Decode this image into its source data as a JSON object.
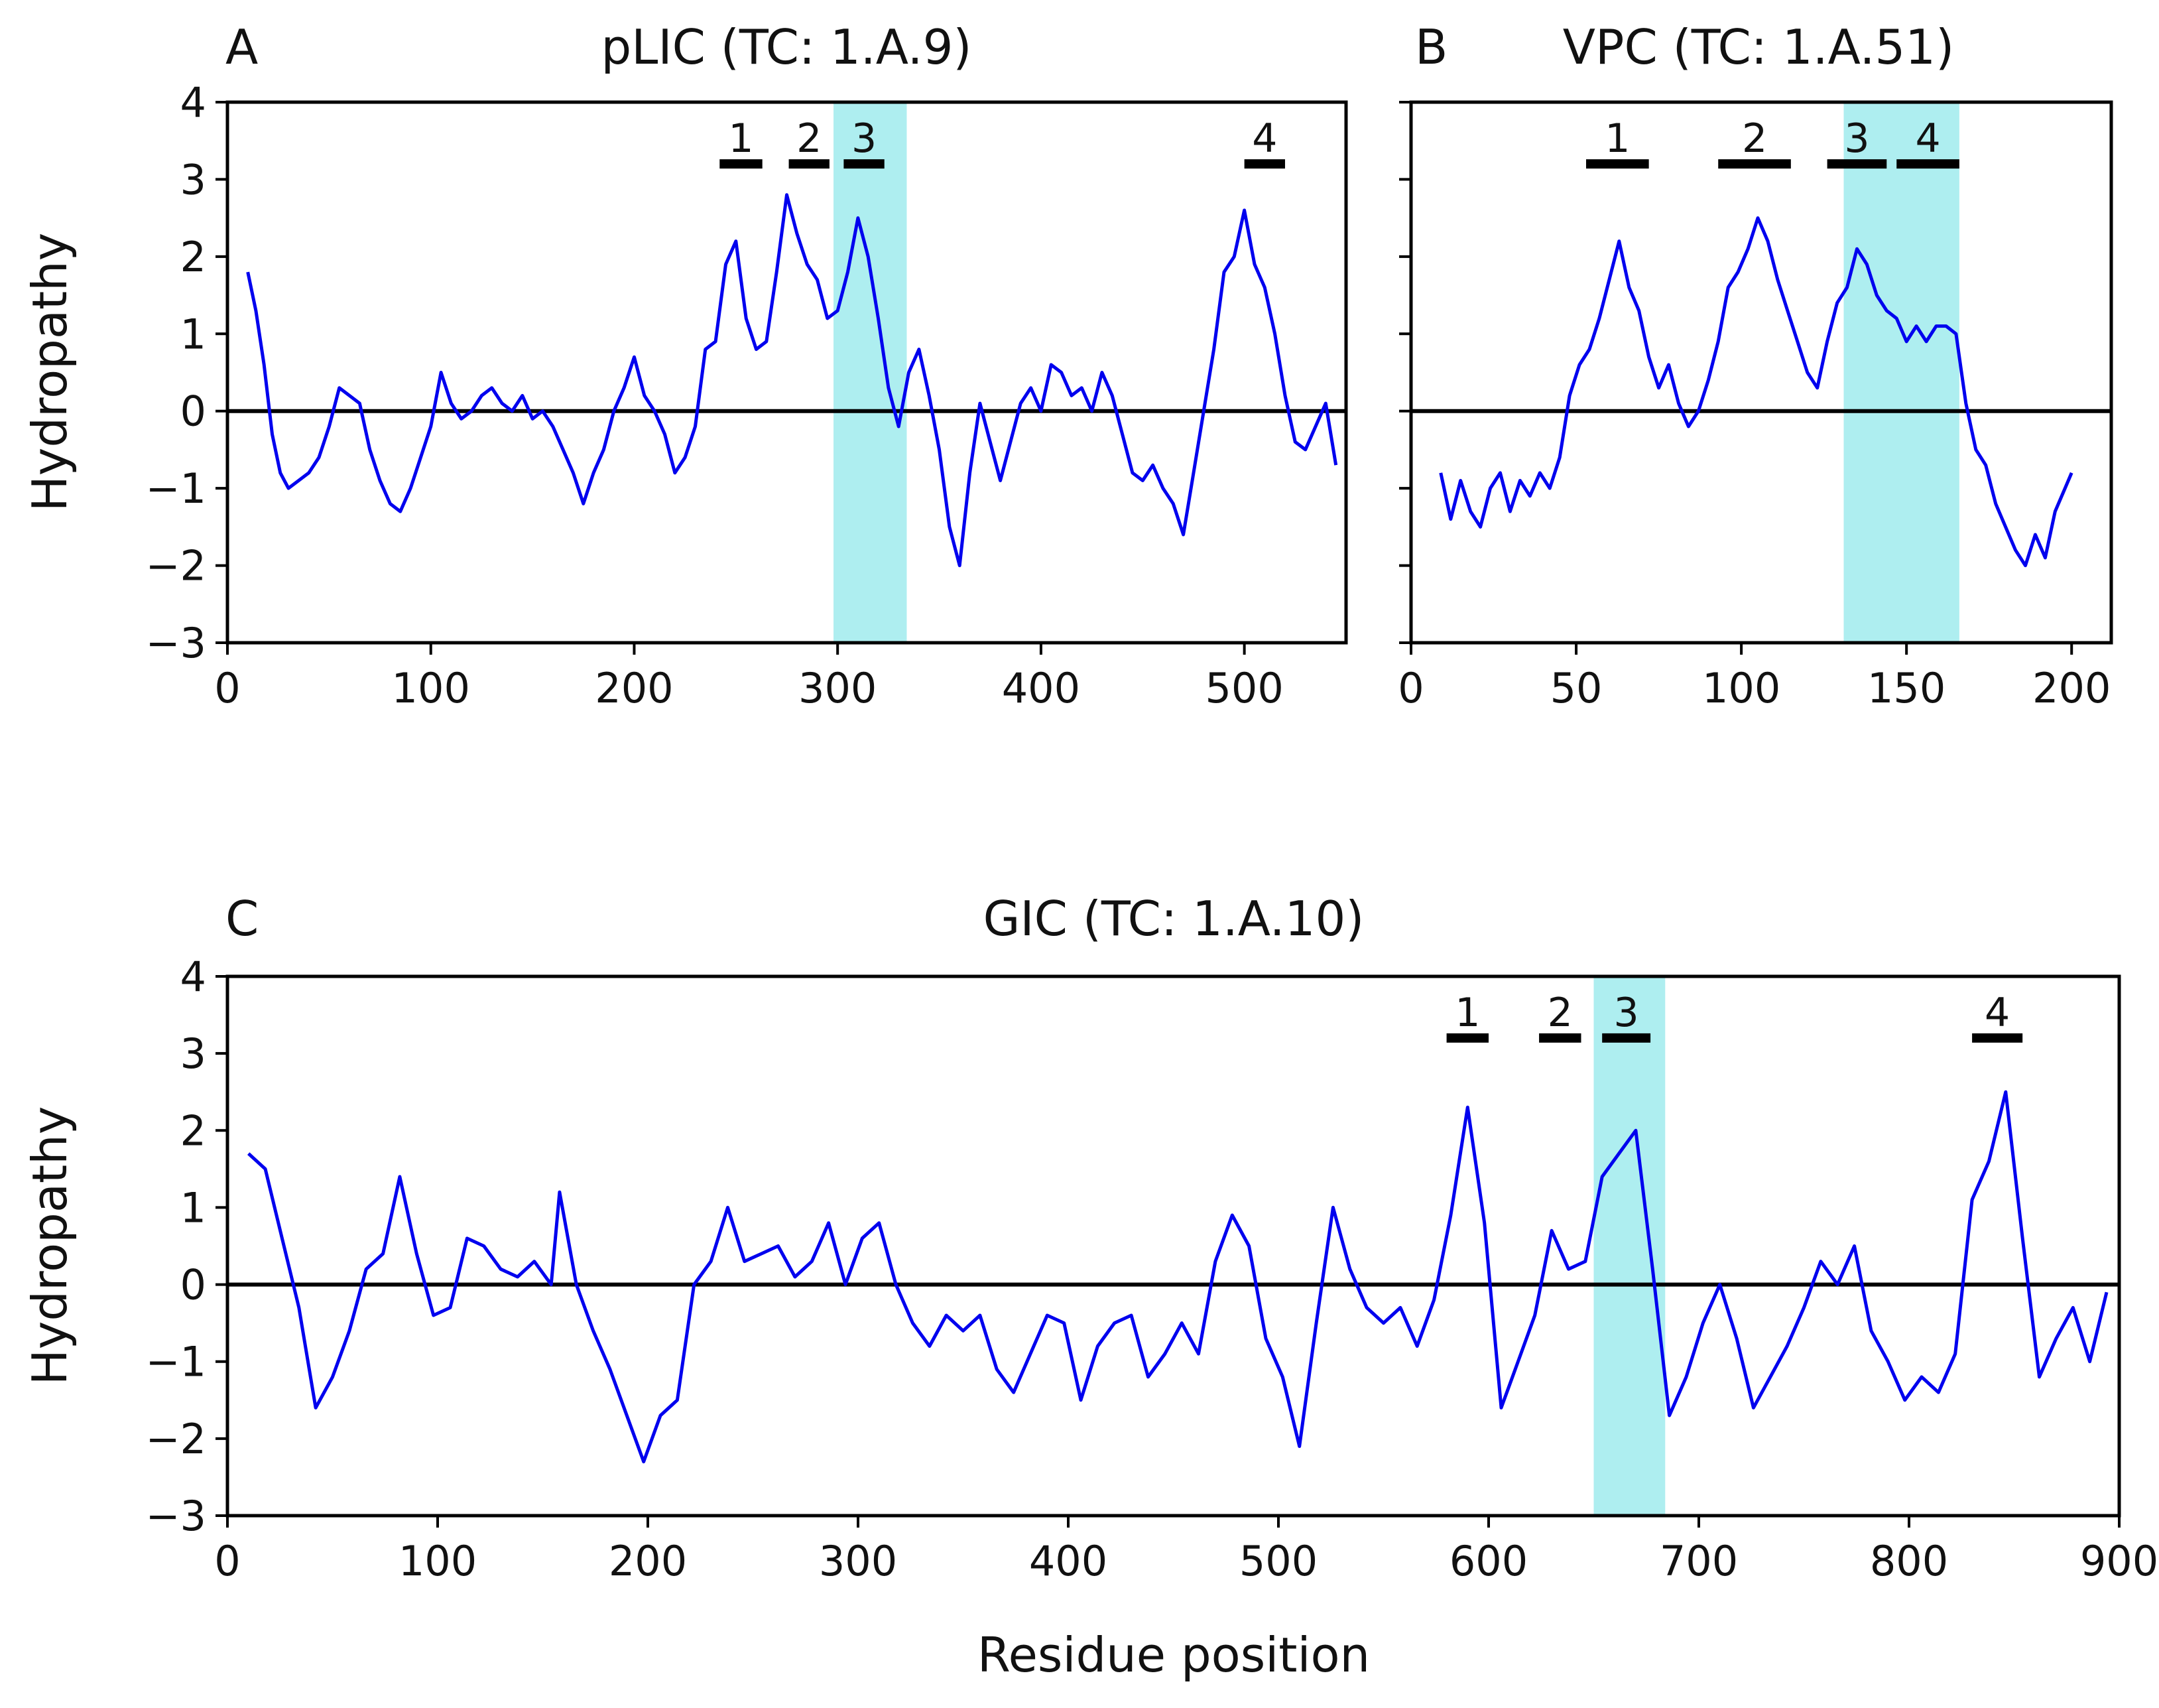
{
  "colors": {
    "line": "#0000ee",
    "shade": "#aeeef0",
    "axis": "#000000"
  },
  "chart_data": [
    {
      "type": "line",
      "panel_letter": "A",
      "title": "pLIC (TC: 1.A.9)",
      "ylabel": "Hydropathy",
      "xlabel": "",
      "xlim": [
        0,
        550
      ],
      "ylim": [
        -3,
        4
      ],
      "xticks": [
        0,
        100,
        200,
        300,
        400,
        500
      ],
      "yticks": [
        -3,
        -2,
        -1,
        0,
        1,
        2,
        3,
        4
      ],
      "ytick_labels": [
        "−3",
        "−2",
        "−1",
        "0",
        "1",
        "2",
        "3",
        "4"
      ],
      "grid": false,
      "zero_line": true,
      "shaded_region": [
        298,
        334
      ],
      "tm_segments": [
        {
          "label": "1",
          "start": 242,
          "end": 263
        },
        {
          "label": "2",
          "start": 276,
          "end": 296
        },
        {
          "label": "3",
          "start": 303,
          "end": 323
        },
        {
          "label": "4",
          "start": 500,
          "end": 520
        }
      ],
      "series": [
        {
          "x": [
            10,
            14,
            18,
            22,
            26,
            30,
            35,
            40,
            45,
            50,
            55,
            60,
            65,
            70,
            75,
            80,
            85,
            90,
            95,
            100,
            105,
            110,
            115,
            120,
            125,
            130,
            135,
            140,
            145,
            150,
            155,
            160,
            165,
            170,
            175,
            180,
            185,
            190,
            195,
            200,
            205,
            210,
            215,
            220,
            225,
            230,
            235,
            240,
            245,
            250,
            255,
            260,
            265,
            270,
            275,
            280,
            285,
            290,
            295,
            300,
            305,
            310,
            315,
            320,
            325,
            330,
            335,
            340,
            345,
            350,
            355,
            360,
            365,
            370,
            375,
            380,
            385,
            390,
            395,
            400,
            405,
            410,
            415,
            420,
            425,
            430,
            435,
            440,
            445,
            450,
            455,
            460,
            465,
            470,
            475,
            480,
            485,
            490,
            495,
            500,
            505,
            510,
            515,
            520,
            525,
            530,
            535,
            540,
            545
          ],
          "y": [
            1.8,
            1.3,
            0.6,
            -0.3,
            -0.8,
            -1.0,
            -0.9,
            -0.8,
            -0.6,
            -0.2,
            0.3,
            0.2,
            0.1,
            -0.5,
            -0.9,
            -1.2,
            -1.3,
            -1.0,
            -0.6,
            -0.2,
            0.5,
            0.1,
            -0.1,
            0.0,
            0.2,
            0.3,
            0.1,
            0.0,
            0.2,
            -0.1,
            0.0,
            -0.2,
            -0.5,
            -0.8,
            -1.2,
            -0.8,
            -0.5,
            0.0,
            0.3,
            0.7,
            0.2,
            0.0,
            -0.3,
            -0.8,
            -0.6,
            -0.2,
            0.8,
            0.9,
            1.9,
            2.2,
            1.2,
            0.8,
            0.9,
            1.8,
            2.8,
            2.3,
            1.9,
            1.7,
            1.2,
            1.3,
            1.8,
            2.5,
            2.0,
            1.2,
            0.3,
            -0.2,
            0.5,
            0.8,
            0.2,
            -0.5,
            -1.5,
            -2.0,
            -0.8,
            0.1,
            -0.4,
            -0.9,
            -0.4,
            0.1,
            0.3,
            0.0,
            0.6,
            0.5,
            0.2,
            0.3,
            0.0,
            0.5,
            0.2,
            -0.3,
            -0.8,
            -0.9,
            -0.7,
            -1.0,
            -1.2,
            -1.6,
            -0.8,
            0.0,
            0.8,
            1.8,
            2.0,
            2.6,
            1.9,
            1.6,
            1.0,
            0.2,
            -0.4,
            -0.5,
            -0.2,
            0.1,
            -0.7
          ]
        }
      ]
    },
    {
      "type": "line",
      "panel_letter": "B",
      "title": "VPC (TC: 1.A.51)",
      "ylabel": "",
      "xlabel": "",
      "xlim": [
        0,
        212
      ],
      "ylim": [
        -3,
        4
      ],
      "xticks": [
        0,
        50,
        100,
        150,
        200
      ],
      "yticks": [
        -3,
        -2,
        -1,
        0,
        1,
        2,
        3,
        4
      ],
      "ytick_labels": [
        "",
        "",
        "",
        "",
        "",
        "",
        "",
        ""
      ],
      "grid": false,
      "zero_line": true,
      "shaded_region": [
        131,
        166
      ],
      "tm_segments": [
        {
          "label": "1",
          "start": 53,
          "end": 72
        },
        {
          "label": "2",
          "start": 93,
          "end": 115
        },
        {
          "label": "3",
          "start": 126,
          "end": 144
        },
        {
          "label": "4",
          "start": 147,
          "end": 166
        }
      ],
      "series": [
        {
          "x": [
            9,
            12,
            15,
            18,
            21,
            24,
            27,
            30,
            33,
            36,
            39,
            42,
            45,
            48,
            51,
            54,
            57,
            60,
            63,
            66,
            69,
            72,
            75,
            78,
            81,
            84,
            87,
            90,
            93,
            96,
            99,
            102,
            105,
            108,
            111,
            114,
            117,
            120,
            123,
            126,
            129,
            132,
            135,
            138,
            141,
            144,
            147,
            150,
            153,
            156,
            159,
            162,
            165,
            168,
            171,
            174,
            177,
            180,
            183,
            186,
            189,
            192,
            195,
            198,
            200
          ],
          "y": [
            -0.8,
            -1.4,
            -0.9,
            -1.3,
            -1.5,
            -1.0,
            -0.8,
            -1.3,
            -0.9,
            -1.1,
            -0.8,
            -1.0,
            -0.6,
            0.2,
            0.6,
            0.8,
            1.2,
            1.7,
            2.2,
            1.6,
            1.3,
            0.7,
            0.3,
            0.6,
            0.1,
            -0.2,
            0.0,
            0.4,
            0.9,
            1.6,
            1.8,
            2.1,
            2.5,
            2.2,
            1.7,
            1.3,
            0.9,
            0.5,
            0.3,
            0.9,
            1.4,
            1.6,
            2.1,
            1.9,
            1.5,
            1.3,
            1.2,
            0.9,
            1.1,
            0.9,
            1.1,
            1.1,
            1.0,
            0.1,
            -0.5,
            -0.7,
            -1.2,
            -1.5,
            -1.8,
            -2.0,
            -1.6,
            -1.9,
            -1.3,
            -1.0,
            -0.8
          ]
        }
      ]
    },
    {
      "type": "line",
      "panel_letter": "C",
      "title": "GIC (TC: 1.A.10)",
      "ylabel": "Hydropathy",
      "xlabel": "Residue position",
      "xlim": [
        0,
        900
      ],
      "ylim": [
        -3,
        4
      ],
      "xticks": [
        0,
        100,
        200,
        300,
        400,
        500,
        600,
        700,
        800,
        900
      ],
      "yticks": [
        -3,
        -2,
        -1,
        0,
        1,
        2,
        3,
        4
      ],
      "ytick_labels": [
        "−3",
        "−2",
        "−1",
        "0",
        "1",
        "2",
        "3",
        "4"
      ],
      "grid": false,
      "zero_line": true,
      "shaded_region": [
        650,
        684
      ],
      "tm_segments": [
        {
          "label": "1",
          "start": 580,
          "end": 600
        },
        {
          "label": "2",
          "start": 624,
          "end": 644
        },
        {
          "label": "3",
          "start": 654,
          "end": 677
        },
        {
          "label": "4",
          "start": 830,
          "end": 854
        }
      ],
      "series": [
        {
          "x": [
            10,
            18,
            26,
            34,
            42,
            50,
            58,
            66,
            74,
            82,
            90,
            98,
            106,
            114,
            122,
            130,
            138,
            146,
            154,
            158,
            166,
            174,
            182,
            190,
            198,
            206,
            214,
            222,
            230,
            238,
            246,
            254,
            262,
            270,
            278,
            286,
            294,
            302,
            310,
            318,
            326,
            334,
            342,
            350,
            358,
            366,
            374,
            382,
            390,
            398,
            406,
            414,
            422,
            430,
            438,
            446,
            454,
            462,
            470,
            478,
            486,
            494,
            502,
            510,
            518,
            526,
            534,
            542,
            550,
            558,
            566,
            574,
            582,
            590,
            598,
            606,
            614,
            622,
            630,
            638,
            646,
            654,
            662,
            670,
            678,
            686,
            694,
            702,
            710,
            718,
            726,
            734,
            742,
            750,
            758,
            766,
            774,
            782,
            790,
            798,
            806,
            814,
            822,
            830,
            838,
            846,
            854,
            862,
            870,
            878,
            886,
            894
          ],
          "y": [
            1.7,
            1.5,
            0.6,
            -0.3,
            -1.6,
            -1.2,
            -0.6,
            0.2,
            0.4,
            1.4,
            0.4,
            -0.4,
            -0.3,
            0.6,
            0.5,
            0.2,
            0.1,
            0.3,
            0.0,
            1.2,
            0.0,
            -0.6,
            -1.1,
            -1.7,
            -2.3,
            -1.7,
            -1.5,
            0.0,
            0.3,
            1.0,
            0.3,
            0.4,
            0.5,
            0.1,
            0.3,
            0.8,
            0.0,
            0.6,
            0.8,
            0.0,
            -0.5,
            -0.8,
            -0.4,
            -0.6,
            -0.4,
            -1.1,
            -1.4,
            -0.9,
            -0.4,
            -0.5,
            -1.5,
            -0.8,
            -0.5,
            -0.4,
            -1.2,
            -0.9,
            -0.5,
            -0.9,
            0.3,
            0.9,
            0.5,
            -0.7,
            -1.2,
            -2.1,
            -0.5,
            1.0,
            0.2,
            -0.3,
            -0.5,
            -0.3,
            -0.8,
            -0.2,
            0.9,
            2.3,
            0.8,
            -1.6,
            -1.0,
            -0.4,
            0.7,
            0.2,
            0.3,
            1.4,
            1.7,
            2.0,
            0.2,
            -1.7,
            -1.2,
            -0.5,
            0.0,
            -0.7,
            -1.6,
            -1.2,
            -0.8,
            -0.3,
            0.3,
            0.0,
            0.5,
            -0.6,
            -1.0,
            -1.5,
            -1.2,
            -1.4,
            -0.9,
            1.1,
            1.6,
            2.5,
            0.6,
            -1.2,
            -0.7,
            -0.3,
            -1.0,
            -0.1
          ]
        }
      ]
    }
  ]
}
